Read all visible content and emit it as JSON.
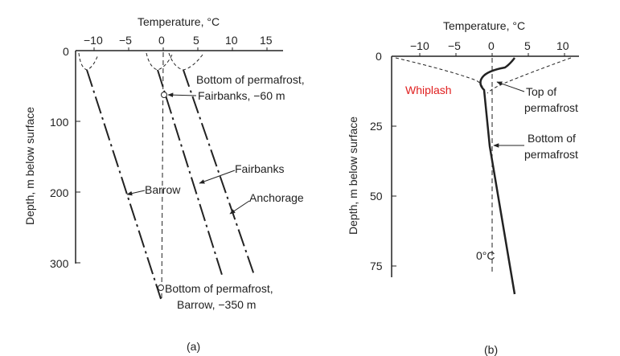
{
  "colors": {
    "ink": "#222222",
    "annotation_red": "#e02020",
    "background": "#ffffff"
  },
  "panel_a": {
    "title": "Temperature, °C",
    "ylabel": "Depth, m below surface",
    "caption": "(a)",
    "x_ticks": [
      "−10",
      "−5",
      "0",
      "5",
      "10",
      "15"
    ],
    "y_ticks": [
      "0",
      "100",
      "200",
      "300"
    ],
    "labels": {
      "bottom_fairbanks_1": "Bottom of permafrost,",
      "bottom_fairbanks_2": "Fairbanks, −60 m",
      "fairbanks": "Fairbanks",
      "barrow": "Barrow",
      "anchorage": "Anchorage",
      "bottom_barrow_1": "Bottom of permafrost,",
      "bottom_barrow_2": "Barrow, −350 m"
    }
  },
  "panel_b": {
    "title": "Temperature, °C",
    "ylabel": "Depth, m below surface",
    "caption": "(b)",
    "x_ticks": [
      "−10",
      "−5",
      "0",
      "5",
      "10"
    ],
    "y_ticks": [
      "0",
      "25",
      "50",
      "75"
    ],
    "labels": {
      "whiplash": "Whiplash",
      "top_1": "Top of",
      "top_2": "permafrost",
      "bottom_1": "Bottom of",
      "bottom_2": "permafrost",
      "zero_c": "0°C"
    }
  }
}
